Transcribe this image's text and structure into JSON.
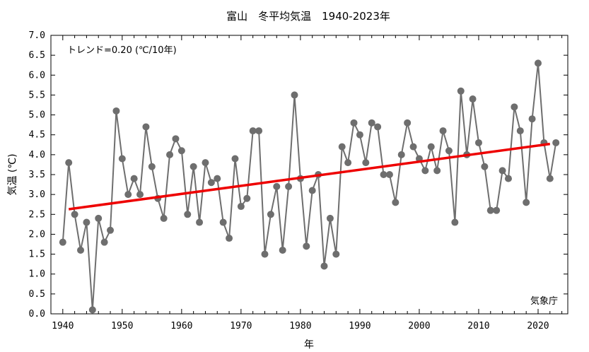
{
  "chart_data": {
    "type": "line",
    "title": "富山　冬平均気温　1940-2023年",
    "xlabel": "年",
    "ylabel": "気温 (℃)",
    "xlim": [
      1938,
      2025
    ],
    "ylim": [
      0.0,
      7.0
    ],
    "x_ticks": [
      1940,
      1950,
      1960,
      1970,
      1980,
      1990,
      2000,
      2010,
      2020
    ],
    "y_ticks": [
      "0.0",
      "0.5",
      "1.0",
      "1.5",
      "2.0",
      "2.5",
      "3.0",
      "3.5",
      "4.0",
      "4.5",
      "5.0",
      "5.5",
      "6.0",
      "6.5",
      "7.0"
    ],
    "grid": false,
    "series": [
      {
        "color": "#6e6e6e",
        "x": [
          1940,
          1941,
          1942,
          1943,
          1944,
          1945,
          1946,
          1947,
          1948,
          1949,
          1950,
          1951,
          1952,
          1953,
          1954,
          1955,
          1956,
          1957,
          1958,
          1959,
          1960,
          1961,
          1962,
          1963,
          1964,
          1965,
          1966,
          1967,
          1968,
          1969,
          1970,
          1971,
          1972,
          1973,
          1974,
          1975,
          1976,
          1977,
          1978,
          1979,
          1980,
          1981,
          1982,
          1983,
          1984,
          1985,
          1986,
          1987,
          1988,
          1989,
          1990,
          1991,
          1992,
          1993,
          1994,
          1995,
          1996,
          1997,
          1998,
          1999,
          2000,
          2001,
          2002,
          2003,
          2004,
          2005,
          2006,
          2007,
          2008,
          2009,
          2010,
          2011,
          2012,
          2013,
          2014,
          2015,
          2016,
          2017,
          2018,
          2019,
          2020,
          2021,
          2022,
          2023
        ],
        "values": [
          1.8,
          3.8,
          2.5,
          1.6,
          2.3,
          0.1,
          2.4,
          1.8,
          2.1,
          5.1,
          3.9,
          3.0,
          3.4,
          3.0,
          4.7,
          3.7,
          2.9,
          2.4,
          4.0,
          4.4,
          4.1,
          2.5,
          3.7,
          2.3,
          3.8,
          3.3,
          3.4,
          2.3,
          1.9,
          3.9,
          2.7,
          2.9,
          4.6,
          4.6,
          1.5,
          2.5,
          3.2,
          1.6,
          3.2,
          5.5,
          3.4,
          1.7,
          3.1,
          3.5,
          1.2,
          2.4,
          1.5,
          4.2,
          3.8,
          4.8,
          4.5,
          3.8,
          4.8,
          4.7,
          3.5,
          3.5,
          2.8,
          4.0,
          4.8,
          4.2,
          3.9,
          3.6,
          4.2,
          3.6,
          4.6,
          4.1,
          2.3,
          5.6,
          4.0,
          5.4,
          4.3,
          3.7,
          2.6,
          2.6,
          3.6,
          3.4,
          5.2,
          4.6,
          2.8,
          4.9,
          6.3,
          4.3,
          3.4,
          4.3
        ]
      },
      {
        "color": "#ee0000",
        "x": [
          1941,
          2022
        ],
        "values": [
          2.63,
          4.27
        ]
      }
    ],
    "annotations": {
      "trend": "トレンド=0.20 (℃/10年)",
      "source": "気象庁"
    }
  }
}
